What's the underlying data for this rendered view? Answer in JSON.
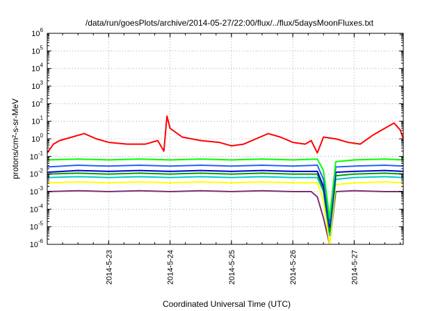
{
  "chart_data": {
    "type": "line",
    "title": "/data/run/goesPlots/archive/2014-05-27/22:00/flux/../flux/5daysMoonFluxes.txt",
    "xlabel": "Coordinated Universal Time (UTC)",
    "ylabel": "protons/cm²-s-sr-MeV",
    "yscale": "log",
    "ylim_exp": [
      -6,
      6
    ],
    "y_ticks": [
      "10^-6",
      "10^-5",
      "10^-4",
      "10^-3",
      "10^-2",
      "10^-1",
      "10^0",
      "10^1",
      "10^2",
      "10^3",
      "10^4",
      "10^5",
      "10^6"
    ],
    "xlim": [
      0,
      5.8
    ],
    "x_ticks": [
      {
        "x": 1.0,
        "label": "2014-5-23"
      },
      {
        "x": 2.0,
        "label": "2014-5-24"
      },
      {
        "x": 3.0,
        "label": "2014-5-25"
      },
      {
        "x": 4.0,
        "label": "2014-5-26"
      },
      {
        "x": 5.0,
        "label": "2014-5-27"
      }
    ],
    "grid": true,
    "series": [
      {
        "color": "#7b2d6e",
        "points": [
          [
            0,
            -3.0
          ],
          [
            0.5,
            -2.95
          ],
          [
            1.0,
            -3.0
          ],
          [
            1.5,
            -2.95
          ],
          [
            2.0,
            -3.0
          ],
          [
            2.5,
            -2.95
          ],
          [
            3.0,
            -3.0
          ],
          [
            3.5,
            -2.95
          ],
          [
            4.0,
            -3.0
          ],
          [
            4.3,
            -3.0
          ],
          [
            4.4,
            -3.3
          ],
          [
            4.5,
            -4.5
          ],
          [
            4.6,
            -6.0
          ],
          [
            4.7,
            -3.0
          ],
          [
            5.0,
            -2.95
          ],
          [
            5.5,
            -3.0
          ],
          [
            5.8,
            -3.0
          ]
        ]
      },
      {
        "color": "#ffff00",
        "points": [
          [
            0,
            -2.5
          ],
          [
            0.5,
            -2.45
          ],
          [
            1.0,
            -2.5
          ],
          [
            1.5,
            -2.45
          ],
          [
            2.0,
            -2.5
          ],
          [
            2.5,
            -2.45
          ],
          [
            3.0,
            -2.5
          ],
          [
            3.5,
            -2.45
          ],
          [
            4.0,
            -2.5
          ],
          [
            4.4,
            -2.5
          ],
          [
            4.5,
            -3.5
          ],
          [
            4.6,
            -6.0
          ],
          [
            4.7,
            -2.6
          ],
          [
            5.0,
            -2.5
          ],
          [
            5.5,
            -2.45
          ],
          [
            5.8,
            -2.5
          ]
        ]
      },
      {
        "color": "#00c8c8",
        "points": [
          [
            0,
            -2.2
          ],
          [
            0.5,
            -2.15
          ],
          [
            1.0,
            -2.2
          ],
          [
            1.5,
            -2.15
          ],
          [
            2.0,
            -2.2
          ],
          [
            2.5,
            -2.15
          ],
          [
            3.0,
            -2.2
          ],
          [
            3.5,
            -2.15
          ],
          [
            4.0,
            -2.2
          ],
          [
            4.4,
            -2.2
          ],
          [
            4.5,
            -3.0
          ],
          [
            4.6,
            -5.5
          ],
          [
            4.7,
            -2.3
          ],
          [
            5.0,
            -2.2
          ],
          [
            5.5,
            -2.15
          ],
          [
            5.8,
            -2.2
          ]
        ]
      },
      {
        "color": "#00a000",
        "points": [
          [
            0,
            -2.0
          ],
          [
            0.5,
            -1.95
          ],
          [
            1.0,
            -2.0
          ],
          [
            1.5,
            -1.95
          ],
          [
            2.0,
            -2.0
          ],
          [
            2.5,
            -1.95
          ],
          [
            3.0,
            -2.0
          ],
          [
            3.5,
            -1.95
          ],
          [
            4.0,
            -2.0
          ],
          [
            4.4,
            -2.0
          ],
          [
            4.5,
            -2.9
          ],
          [
            4.6,
            -5.3
          ],
          [
            4.7,
            -2.1
          ],
          [
            5.0,
            -2.0
          ],
          [
            5.5,
            -1.95
          ],
          [
            5.8,
            -2.0
          ]
        ]
      },
      {
        "color": "#0000cc",
        "points": [
          [
            0,
            -1.9
          ],
          [
            0.5,
            -1.8
          ],
          [
            1.0,
            -1.85
          ],
          [
            1.5,
            -1.8
          ],
          [
            2.0,
            -1.85
          ],
          [
            2.5,
            -1.8
          ],
          [
            3.0,
            -1.85
          ],
          [
            3.5,
            -1.8
          ],
          [
            4.0,
            -1.85
          ],
          [
            4.4,
            -1.85
          ],
          [
            4.5,
            -2.7
          ],
          [
            4.6,
            -5.0
          ],
          [
            4.7,
            -1.9
          ],
          [
            5.0,
            -1.85
          ],
          [
            5.5,
            -1.8
          ],
          [
            5.8,
            -1.85
          ]
        ]
      },
      {
        "color": "#2060ff",
        "points": [
          [
            0,
            -1.6
          ],
          [
            0.5,
            -1.5
          ],
          [
            1.0,
            -1.55
          ],
          [
            1.5,
            -1.5
          ],
          [
            2.0,
            -1.55
          ],
          [
            2.5,
            -1.5
          ],
          [
            3.0,
            -1.55
          ],
          [
            3.5,
            -1.5
          ],
          [
            4.0,
            -1.55
          ],
          [
            4.4,
            -1.5
          ],
          [
            4.5,
            -2.3
          ],
          [
            4.6,
            -4.8
          ],
          [
            4.7,
            -1.6
          ],
          [
            5.0,
            -1.55
          ],
          [
            5.5,
            -1.5
          ],
          [
            5.8,
            -1.55
          ]
        ]
      },
      {
        "color": "#00ff00",
        "points": [
          [
            0,
            -1.2
          ],
          [
            0.5,
            -1.15
          ],
          [
            1.0,
            -1.2
          ],
          [
            1.5,
            -1.15
          ],
          [
            2.0,
            -1.2
          ],
          [
            2.5,
            -1.15
          ],
          [
            3.0,
            -1.2
          ],
          [
            3.5,
            -1.15
          ],
          [
            4.0,
            -1.2
          ],
          [
            4.4,
            -1.15
          ],
          [
            4.5,
            -1.8
          ],
          [
            4.6,
            -4.5
          ],
          [
            4.7,
            -1.3
          ],
          [
            5.0,
            -1.2
          ],
          [
            5.5,
            -1.15
          ],
          [
            5.8,
            -1.2
          ]
        ]
      },
      {
        "color": "#ff0000",
        "points": [
          [
            0,
            -0.8
          ],
          [
            0.1,
            -0.3
          ],
          [
            0.2,
            -0.1
          ],
          [
            0.4,
            0.1
          ],
          [
            0.6,
            0.3
          ],
          [
            0.8,
            0.0
          ],
          [
            1.0,
            -0.2
          ],
          [
            1.3,
            -0.3
          ],
          [
            1.6,
            -0.3
          ],
          [
            1.8,
            -0.1
          ],
          [
            1.9,
            -0.7
          ],
          [
            1.95,
            1.3
          ],
          [
            2.0,
            0.6
          ],
          [
            2.2,
            0.1
          ],
          [
            2.5,
            -0.1
          ],
          [
            2.8,
            -0.2
          ],
          [
            3.0,
            -0.4
          ],
          [
            3.2,
            -0.3
          ],
          [
            3.4,
            0.0
          ],
          [
            3.6,
            0.3
          ],
          [
            3.8,
            0.1
          ],
          [
            4.0,
            -0.2
          ],
          [
            4.2,
            -0.3
          ],
          [
            4.3,
            -0.1
          ],
          [
            4.4,
            -0.8
          ],
          [
            4.5,
            0.1
          ],
          [
            4.7,
            0.0
          ],
          [
            4.9,
            -0.2
          ],
          [
            5.1,
            -0.3
          ],
          [
            5.3,
            0.2
          ],
          [
            5.5,
            0.6
          ],
          [
            5.65,
            0.9
          ],
          [
            5.75,
            0.5
          ],
          [
            5.8,
            0.0
          ]
        ]
      }
    ]
  }
}
